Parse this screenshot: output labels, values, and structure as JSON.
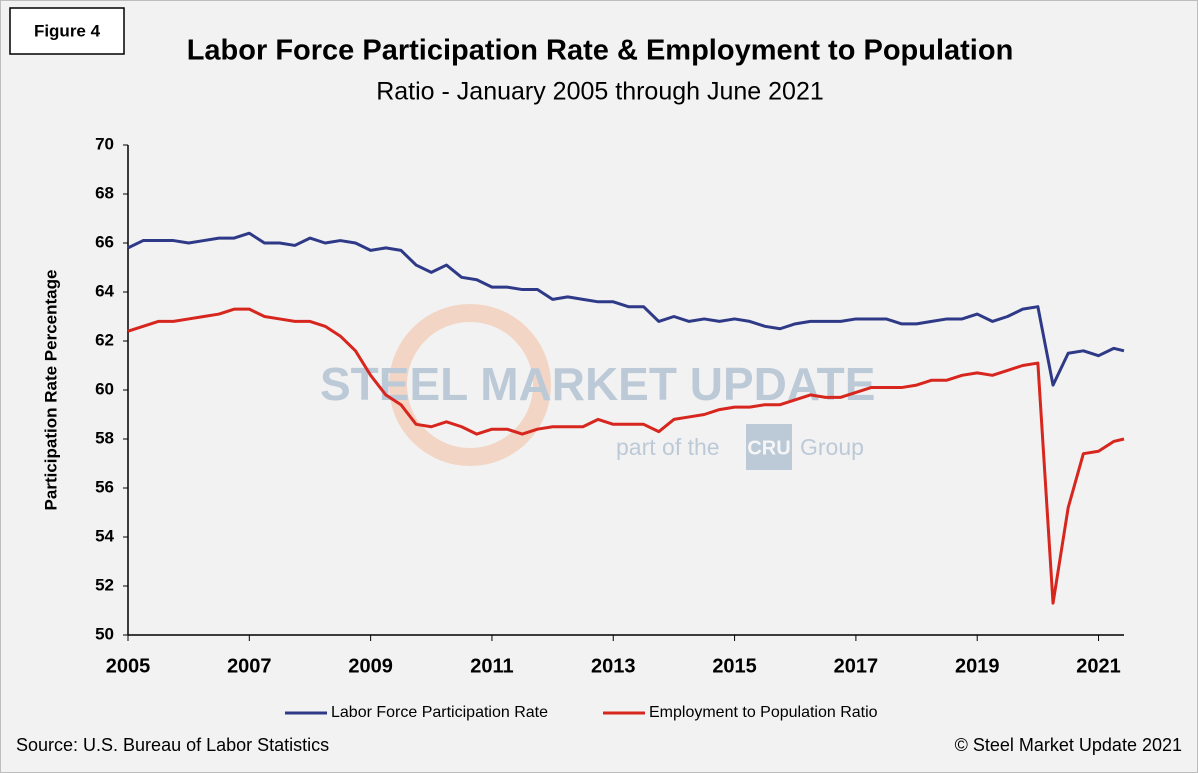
{
  "figure_label": "Figure 4",
  "watermark": {
    "brand": "STEEL MARKET UPDATE",
    "part_of": "part of the",
    "cru": "CRU",
    "group": "Group"
  },
  "source": "Source: U.S. Bureau  of Labor Statistics",
  "copyright": "© Steel Market Update 2021",
  "chart_data": {
    "type": "line",
    "title": "Labor Force Participation Rate & Employment to Population",
    "subtitle": "Ratio - January 2005 through June 2021",
    "y_label": "Participation Rate Percentage",
    "xlim": [
      2005,
      2021.42
    ],
    "ylim": [
      50,
      70
    ],
    "xticks": [
      2005,
      2007,
      2009,
      2011,
      2013,
      2015,
      2017,
      2019,
      2021
    ],
    "yticks": [
      50,
      52,
      54,
      56,
      58,
      60,
      62,
      64,
      66,
      68,
      70
    ],
    "grid": false,
    "legend": "bottom",
    "x": [
      2005,
      2005.25,
      2005.5,
      2005.75,
      2006,
      2006.25,
      2006.5,
      2006.75,
      2007,
      2007.25,
      2007.5,
      2007.75,
      2008,
      2008.25,
      2008.5,
      2008.75,
      2009,
      2009.25,
      2009.5,
      2009.75,
      2010,
      2010.25,
      2010.5,
      2010.75,
      2011,
      2011.25,
      2011.5,
      2011.75,
      2012,
      2012.25,
      2012.5,
      2012.75,
      2013,
      2013.25,
      2013.5,
      2013.75,
      2014,
      2014.25,
      2014.5,
      2014.75,
      2015,
      2015.25,
      2015.5,
      2015.75,
      2016,
      2016.25,
      2016.5,
      2016.75,
      2017,
      2017.25,
      2017.5,
      2017.75,
      2018,
      2018.25,
      2018.5,
      2018.75,
      2019,
      2019.25,
      2019.5,
      2019.75,
      2020,
      2020.25,
      2020.5,
      2020.75,
      2021,
      2021.25,
      2021.42
    ],
    "series": [
      {
        "name": "Labor Force Participation Rate",
        "color": "#2e3a87",
        "values": [
          65.8,
          66.1,
          66.1,
          66.1,
          66.0,
          66.1,
          66.2,
          66.2,
          66.4,
          66.0,
          66.0,
          65.9,
          66.2,
          66.0,
          66.1,
          66.0,
          65.7,
          65.8,
          65.7,
          65.1,
          64.8,
          65.1,
          64.6,
          64.5,
          64.2,
          64.2,
          64.1,
          64.1,
          63.7,
          63.8,
          63.7,
          63.6,
          63.6,
          63.4,
          63.4,
          62.8,
          63.0,
          62.8,
          62.9,
          62.8,
          62.9,
          62.8,
          62.6,
          62.5,
          62.7,
          62.8,
          62.8,
          62.8,
          62.9,
          62.9,
          62.9,
          62.7,
          62.7,
          62.8,
          62.9,
          62.9,
          63.1,
          62.8,
          63.0,
          63.3,
          63.4,
          60.2,
          61.5,
          61.6,
          61.4,
          61.7,
          61.6
        ]
      },
      {
        "name": "Employment to Population Ratio",
        "color": "#d7261e",
        "values": [
          62.4,
          62.6,
          62.8,
          62.8,
          62.9,
          63.0,
          63.1,
          63.3,
          63.3,
          63.0,
          62.9,
          62.8,
          62.8,
          62.6,
          62.2,
          61.6,
          60.6,
          59.8,
          59.4,
          58.6,
          58.5,
          58.7,
          58.5,
          58.2,
          58.4,
          58.4,
          58.2,
          58.4,
          58.5,
          58.5,
          58.5,
          58.8,
          58.6,
          58.6,
          58.6,
          58.3,
          58.8,
          58.9,
          59.0,
          59.2,
          59.3,
          59.3,
          59.4,
          59.4,
          59.6,
          59.8,
          59.7,
          59.7,
          59.9,
          60.1,
          60.1,
          60.1,
          60.2,
          60.4,
          60.4,
          60.6,
          60.7,
          60.6,
          60.8,
          61.0,
          61.1,
          51.3,
          55.2,
          57.4,
          57.5,
          57.9,
          58.0
        ]
      }
    ]
  }
}
